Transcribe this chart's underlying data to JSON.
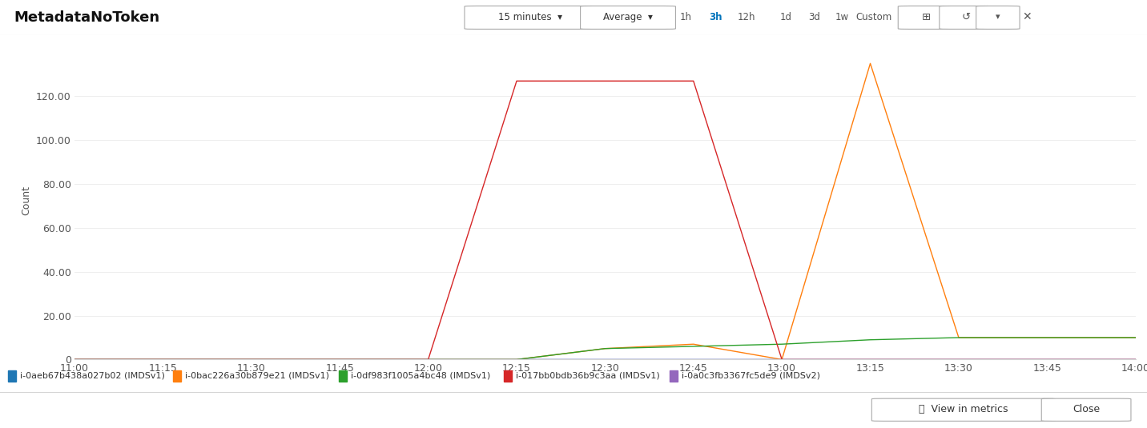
{
  "title": "MetadataNoToken",
  "ylabel": "Count",
  "background_color": "#ffffff",
  "plot_bg_color": "#ffffff",
  "grid_color": "#eeeeee",
  "ylim": [
    0,
    145
  ],
  "yticks": [
    0,
    20.0,
    40.0,
    60.0,
    80.0,
    100.0,
    120.0
  ],
  "ytick_labels": [
    "0",
    "20.00",
    "40.00",
    "60.00",
    "80.00",
    "100.00",
    "120.00"
  ],
  "xtick_labels": [
    "11:00",
    "11:15",
    "11:30",
    "11:45",
    "12:00",
    "12:15",
    "12:30",
    "12:45",
    "13:00",
    "13:15",
    "13:30",
    "13:45",
    "14:00"
  ],
  "series": [
    {
      "label": "i-0aeb67b438a027b02 (IMDSv1)",
      "color": "#1f77b4",
      "values": [
        0,
        0,
        0,
        0,
        0,
        0,
        0,
        0,
        0,
        0,
        0,
        0,
        0
      ]
    },
    {
      "label": "i-0bac226a30b879e21 (IMDSv1)",
      "color": "#ff7f0e",
      "values": [
        0,
        0,
        0,
        0,
        0,
        0,
        5,
        7,
        0,
        135,
        10,
        10,
        10
      ]
    },
    {
      "label": "i-0df983f1005a4bc48 (IMDSv1)",
      "color": "#2ca02c",
      "values": [
        0,
        0,
        0,
        0,
        0,
        0,
        5,
        6,
        7,
        9,
        10,
        10,
        10
      ]
    },
    {
      "label": "i-017bb0bdb36b9c3aa (IMDSv1)",
      "color": "#d62728",
      "values": [
        0,
        0,
        0,
        0,
        0,
        127,
        127,
        127,
        0,
        0,
        0,
        0,
        0
      ]
    },
    {
      "label": "i-0a0c3fb3367fc5de9 (IMDSv2)",
      "color": "#9467bd",
      "values": [
        0,
        0,
        0,
        0,
        0,
        0,
        0,
        0,
        0,
        0,
        0,
        0,
        0
      ]
    }
  ],
  "header_bg": "#f8f8f8",
  "border_color": "#d5d5d5",
  "title_fontsize": 13,
  "axis_fontsize": 9,
  "legend_fontsize": 8,
  "tick_fontsize": 9,
  "header_buttons": {
    "dropdown1": "15 minutes",
    "dropdown2": "Average",
    "time_buttons": [
      "1h",
      "3h",
      "12h",
      "1d",
      "3d",
      "1w",
      "Custom"
    ],
    "active_time": "3h"
  }
}
